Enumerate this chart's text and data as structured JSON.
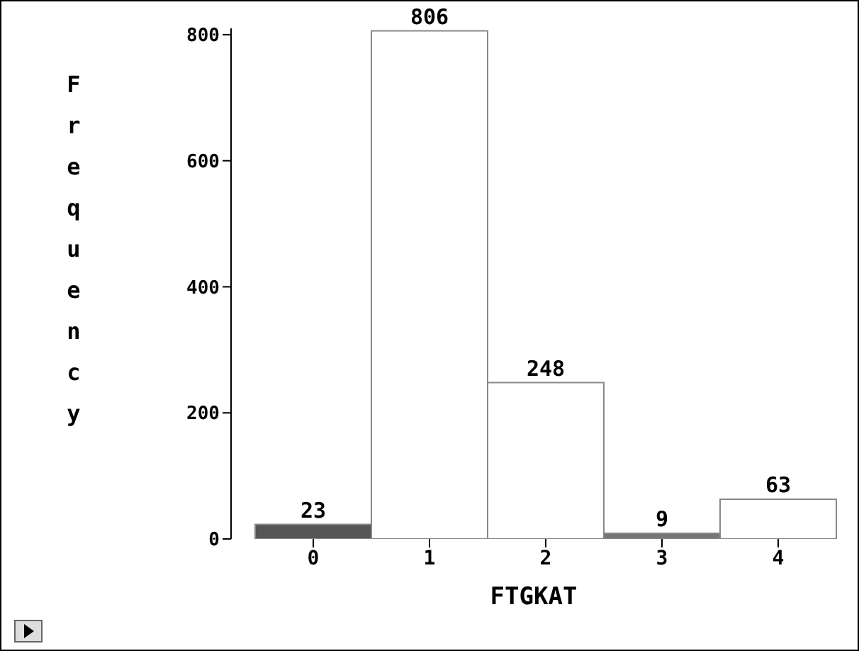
{
  "chart_data": {
    "type": "bar",
    "xlabel": "FTGKAT",
    "ylabel": "Frequency",
    "categories": [
      "0",
      "1",
      "2",
      "3",
      "4"
    ],
    "values": [
      23,
      806,
      248,
      9,
      63
    ],
    "colors": [
      "#555555",
      "#ffffff",
      "#ffffff",
      "#777777",
      "#ffffff"
    ],
    "ylim": [
      0,
      810
    ],
    "yticks": [
      0,
      200,
      400,
      600,
      800
    ],
    "data_labels": true,
    "grid": false
  }
}
